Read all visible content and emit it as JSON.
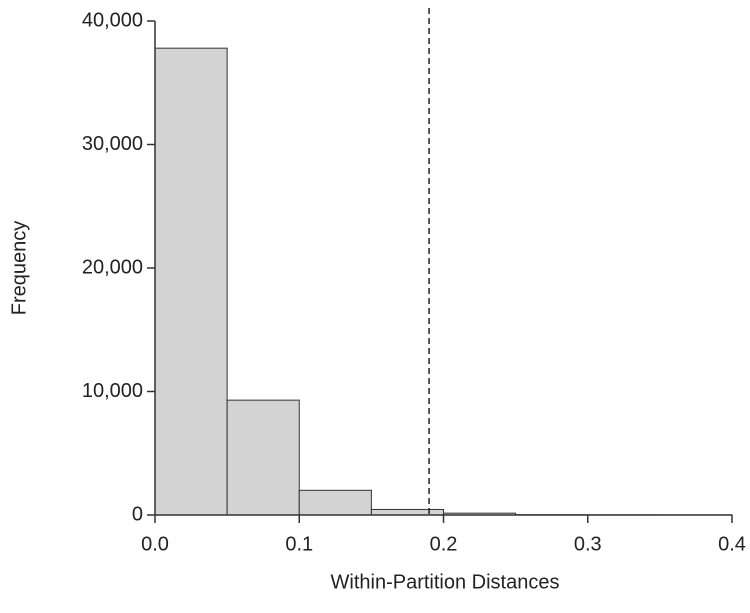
{
  "chart_data": {
    "type": "histogram",
    "xlabel": "Within-Partition Distances",
    "ylabel": "Frequency",
    "bins": [
      0,
      0.05,
      0.1,
      0.15,
      0.2,
      0.25,
      0.3,
      0.35,
      0.4
    ],
    "values": [
      37800,
      9300,
      2000,
      450,
      150,
      20,
      10,
      5
    ],
    "color": "#d3d3d3",
    "edge_color": "#333333",
    "xlim": [
      0,
      0.4
    ],
    "ylim": [
      0,
      40000
    ],
    "xticks": [
      {
        "value": 0,
        "label": "0.0"
      },
      0.1,
      0.2,
      0.3,
      0.4
    ],
    "yticks": [
      0,
      {
        "value": 10000,
        "label": "10,000"
      },
      {
        "value": 20000,
        "label": "20,000"
      },
      {
        "value": 30000,
        "label": "30,000"
      },
      {
        "value": 40000,
        "label": "40,000"
      }
    ],
    "reference_line": 0.19
  }
}
